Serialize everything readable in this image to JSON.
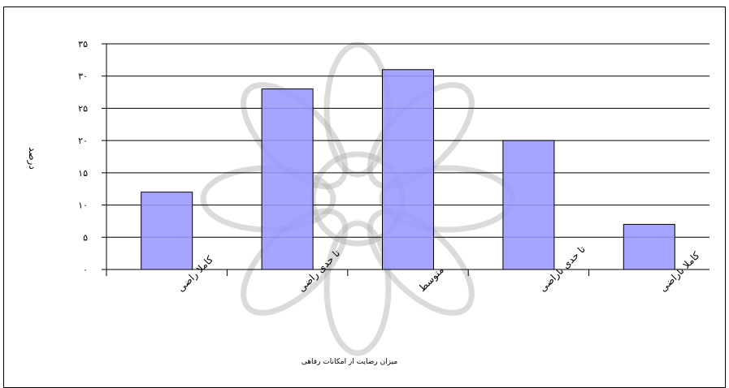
{
  "chart_data": {
    "type": "bar",
    "categories": [
      "کاملا راضی",
      "تا حدی راضی",
      "متوسط",
      "تا حدی ناراضی",
      "کاملا ناراضی"
    ],
    "values": [
      12,
      28,
      31,
      20,
      7
    ],
    "ylabel": "درصد",
    "xlabel": "میزان رضایت از امکانات رفاهی",
    "ylim": [
      0,
      35
    ],
    "yticks": [
      0,
      5,
      10,
      15,
      20,
      25,
      30,
      35
    ],
    "ytick_labels": [
      "۰",
      "۵",
      "۱۰",
      "۱۵",
      "۲۰",
      "۲۵",
      "۳۰",
      "۳۵"
    ],
    "grid": true,
    "bar_color": "#9999ff",
    "watermark_color": "#b0b0b0"
  }
}
